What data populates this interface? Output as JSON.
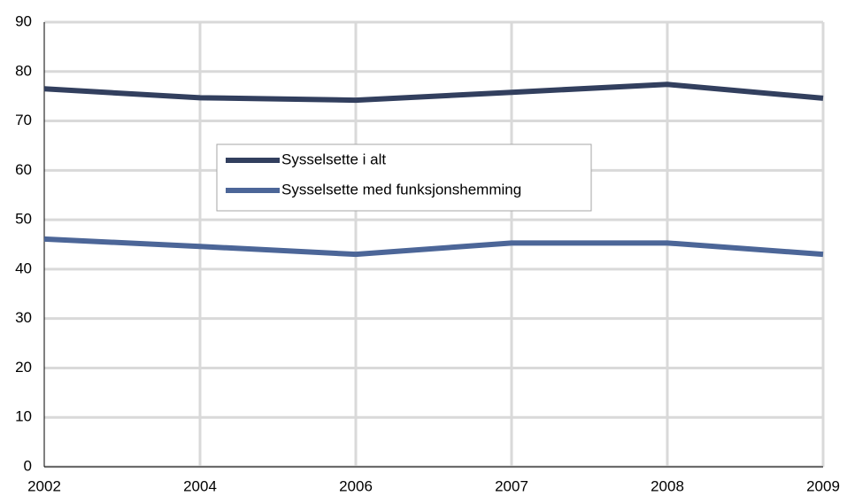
{
  "chart_data": {
    "type": "line",
    "categories": [
      "2002",
      "2004",
      "2006",
      "2007",
      "2008",
      "2009"
    ],
    "series": [
      {
        "name": "Sysselsette i alt",
        "color": "#323f5e",
        "values": [
          76.5,
          74.7,
          74.2,
          75.8,
          77.4,
          74.6
        ]
      },
      {
        "name": "Sysselsette med funksjonshemming",
        "color": "#4c6698",
        "values": [
          46.1,
          44.6,
          43.0,
          45.3,
          45.3,
          43.0
        ]
      }
    ],
    "ylim": [
      0,
      90
    ],
    "yticks": [
      0,
      10,
      20,
      30,
      40,
      50,
      60,
      70,
      80,
      90
    ],
    "grid": true
  }
}
